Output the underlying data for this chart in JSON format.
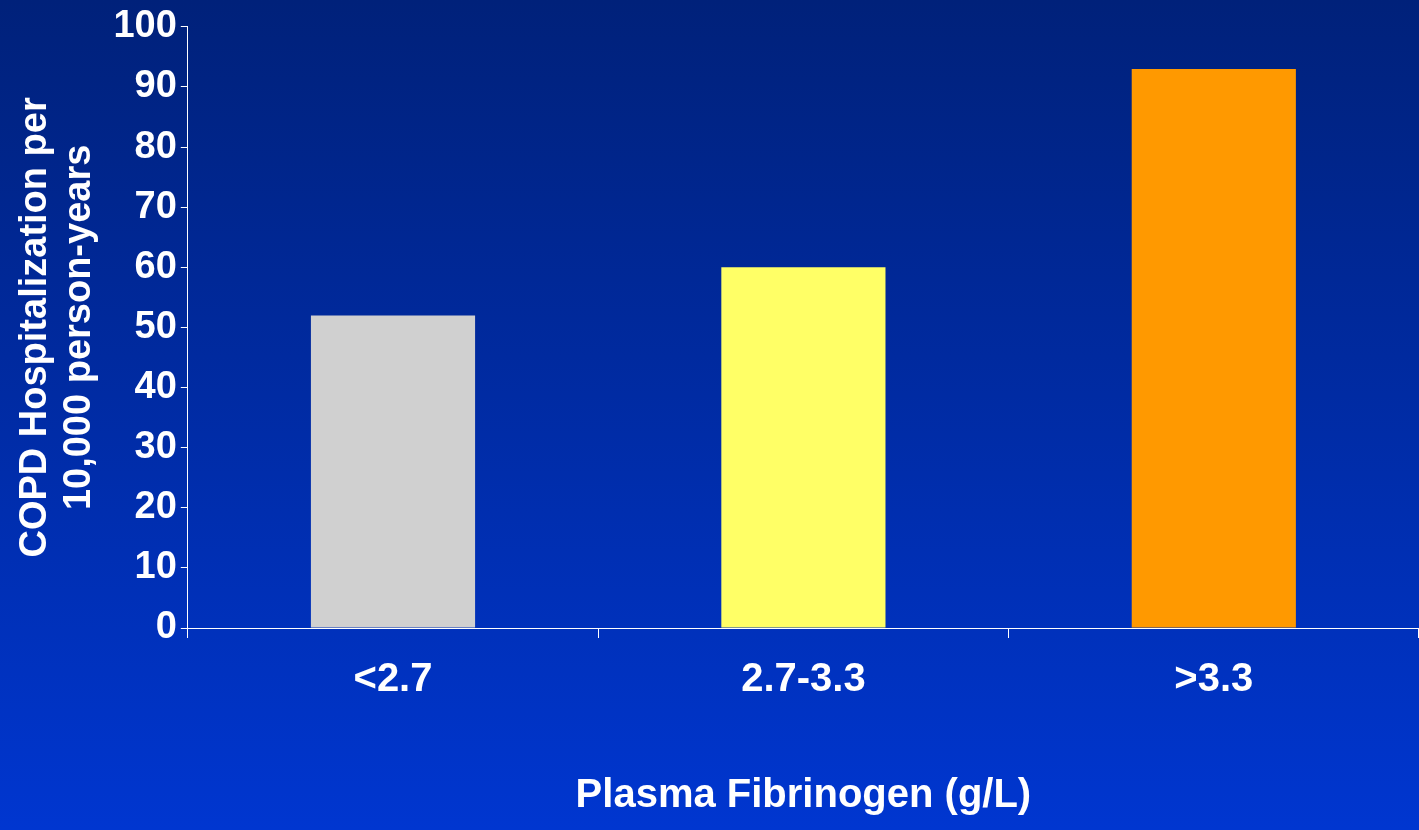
{
  "chart_data": {
    "type": "bar",
    "xlabel": "Plasma Fibrinogen (g/L)",
    "ylabel": "COPD Hospitalization per\n10,000 person-years",
    "categories": [
      "<2.7",
      "2.7-3.3",
      ">3.3"
    ],
    "values": [
      52,
      60,
      93
    ],
    "colors": [
      "#d0d0d0",
      "#ffff66",
      "#ff9900"
    ],
    "ylim": [
      0,
      100
    ],
    "yticks": [
      0,
      10,
      20,
      30,
      40,
      50,
      60,
      70,
      80,
      90,
      100
    ],
    "grid": false,
    "legend": false
  }
}
